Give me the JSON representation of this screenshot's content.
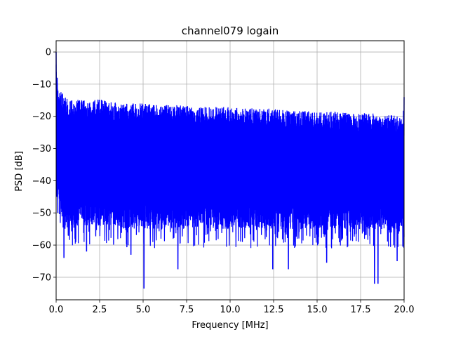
{
  "chart_data": {
    "type": "line",
    "title": "channel079 logain",
    "xlabel": "Frequency [MHz]",
    "ylabel": "PSD [dB]",
    "xlim": [
      0,
      20
    ],
    "ylim": [
      -77,
      3.5
    ],
    "grid": true,
    "xticks": [
      0,
      2.5,
      5,
      7.5,
      10,
      12.5,
      15,
      17.5,
      20
    ],
    "xtick_labels": [
      "0.0",
      "2.5",
      "5.0",
      "7.5",
      "10.0",
      "12.5",
      "15.0",
      "17.5",
      "20.0"
    ],
    "yticks": [
      0,
      -10,
      -20,
      -30,
      -40,
      -50,
      -60,
      -70
    ],
    "ytick_labels": [
      "0",
      "−10",
      "−20",
      "−30",
      "−40",
      "−50",
      "−60",
      "−70"
    ],
    "series": [
      {
        "color": "#0000ff",
        "upper_envelope": {
          "x": [
            0,
            0.05,
            0.1,
            0.2,
            0.4,
            0.7,
            1.0,
            1.5,
            2.0,
            2.5,
            3.0,
            4.0,
            5.0,
            6.0,
            7.0,
            8.0,
            9.0,
            10.0,
            11.0,
            12.0,
            13.0,
            14.0,
            15.0,
            16.0,
            17.0,
            18.0,
            19.0,
            19.9,
            20.0
          ],
          "y": [
            0,
            -8,
            -11,
            -12,
            -13,
            -14,
            -14.5,
            -15,
            -15,
            -14.5,
            -15.5,
            -16,
            -16,
            -16.5,
            -16.5,
            -17,
            -17,
            -17,
            -17.5,
            -17.5,
            -18,
            -18,
            -18.5,
            -18.5,
            -19,
            -19,
            -19.5,
            -20,
            -14
          ]
        },
        "lower_envelope": {
          "x": [
            0,
            0.5,
            1.0,
            2.0,
            3.0,
            4.0,
            5.0,
            6.0,
            7.0,
            8.0,
            9.0,
            10.0,
            11.0,
            12.0,
            13.0,
            14.0,
            15.0,
            16.0,
            17.0,
            18.0,
            19.0,
            20.0
          ],
          "y": [
            -45,
            -55,
            -54,
            -54,
            -54,
            -55,
            -55,
            -55,
            -55,
            -55,
            -55,
            -55,
            -55,
            -55,
            -55,
            -55,
            -55,
            -55,
            -55,
            -55,
            -55,
            -55
          ]
        },
        "deep_nulls": [
          {
            "x": 0.45,
            "y": -64
          },
          {
            "x": 1.75,
            "y": -62
          },
          {
            "x": 4.3,
            "y": -63
          },
          {
            "x": 5.05,
            "y": -73.5
          },
          {
            "x": 7.0,
            "y": -67.5
          },
          {
            "x": 12.45,
            "y": -67.5
          },
          {
            "x": 13.35,
            "y": -67.5
          },
          {
            "x": 15.55,
            "y": -65.5
          },
          {
            "x": 18.3,
            "y": -72
          },
          {
            "x": 18.5,
            "y": -72
          },
          {
            "x": 19.6,
            "y": -65
          }
        ]
      }
    ]
  }
}
